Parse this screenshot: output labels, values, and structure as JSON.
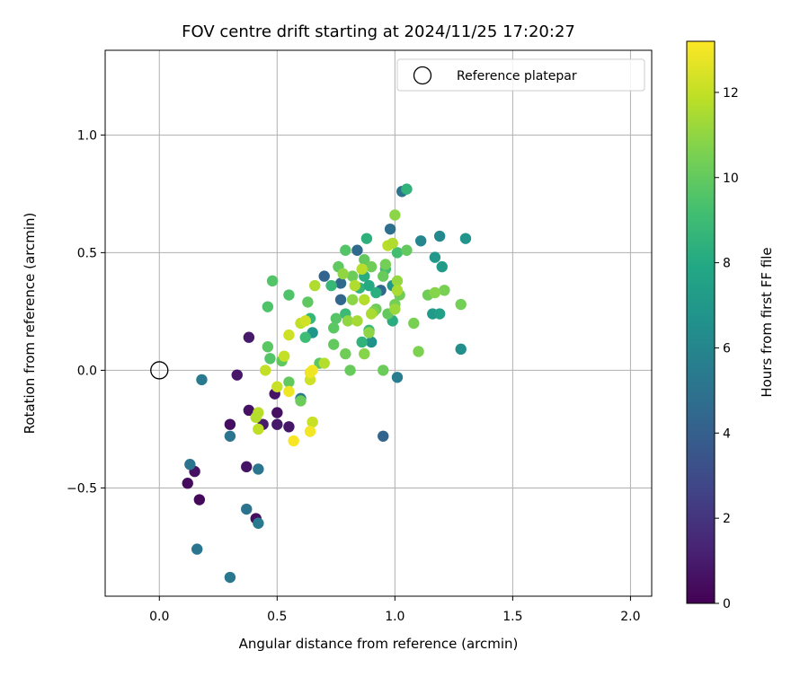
{
  "chart_data": {
    "type": "scatter",
    "title": "FOV centre drift starting at 2024/11/25 17:20:27",
    "xlabel": "Angular distance from reference (arcmin)",
    "ylabel": "Rotation from reference (arcmin)",
    "xlim": [
      -0.23,
      2.09
    ],
    "ylim": [
      -0.96,
      1.36
    ],
    "xticks": [
      0.0,
      0.5,
      1.0,
      1.5,
      2.0
    ],
    "xtick_labels": [
      "0.0",
      "0.5",
      "1.0",
      "1.5",
      "2.0"
    ],
    "yticks": [
      -0.5,
      0.0,
      0.5,
      1.0
    ],
    "ytick_labels": [
      "−0.5",
      "0.0",
      "0.5",
      "1.0"
    ],
    "grid": true,
    "legend": {
      "position": "top-right",
      "label": "Reference platepar"
    },
    "reference_point": [
      0.0,
      0.0
    ],
    "colorbar": {
      "label": "Hours from first FF file",
      "range": [
        0,
        13.2
      ],
      "ticks": [
        0,
        2,
        4,
        6,
        8,
        10,
        12
      ],
      "tick_labels": [
        "0",
        "2",
        "4",
        "6",
        "8",
        "10",
        "12"
      ],
      "colormap": "viridis"
    },
    "points": [
      {
        "x": 0.12,
        "y": -0.48,
        "h": 0.4
      },
      {
        "x": 0.15,
        "y": -0.43,
        "h": 0.6
      },
      {
        "x": 0.17,
        "y": -0.55,
        "h": 0.3
      },
      {
        "x": 0.3,
        "y": -0.23,
        "h": 0.5
      },
      {
        "x": 0.33,
        "y": -0.02,
        "h": 0.8
      },
      {
        "x": 0.38,
        "y": 0.14,
        "h": 0.9
      },
      {
        "x": 0.38,
        "y": -0.17,
        "h": 0.6
      },
      {
        "x": 0.37,
        "y": -0.41,
        "h": 0.7
      },
      {
        "x": 0.41,
        "y": -0.63,
        "h": 0.5
      },
      {
        "x": 0.44,
        "y": -0.23,
        "h": 1.0
      },
      {
        "x": 0.49,
        "y": -0.1,
        "h": 0.7
      },
      {
        "x": 0.5,
        "y": -0.18,
        "h": 0.6
      },
      {
        "x": 0.5,
        "y": -0.23,
        "h": 0.9
      },
      {
        "x": 0.55,
        "y": -0.24,
        "h": 0.8
      },
      {
        "x": 0.13,
        "y": -0.4,
        "h": 5.0
      },
      {
        "x": 0.16,
        "y": -0.76,
        "h": 5.2
      },
      {
        "x": 0.18,
        "y": -0.04,
        "h": 5.4
      },
      {
        "x": 0.3,
        "y": -0.28,
        "h": 5.1
      },
      {
        "x": 0.3,
        "y": -0.88,
        "h": 5.3
      },
      {
        "x": 0.37,
        "y": -0.59,
        "h": 5.0
      },
      {
        "x": 0.42,
        "y": -0.42,
        "h": 5.2
      },
      {
        "x": 0.42,
        "y": -0.65,
        "h": 5.4
      },
      {
        "x": 0.6,
        "y": -0.12,
        "h": 5.3
      },
      {
        "x": 0.7,
        "y": 0.4,
        "h": 4.2
      },
      {
        "x": 0.77,
        "y": 0.37,
        "h": 4.5
      },
      {
        "x": 0.77,
        "y": 0.3,
        "h": 4.4
      },
      {
        "x": 0.84,
        "y": 0.51,
        "h": 4.6
      },
      {
        "x": 0.95,
        "y": -0.28,
        "h": 4.3
      },
      {
        "x": 0.94,
        "y": 0.34,
        "h": 4.5
      },
      {
        "x": 0.98,
        "y": 0.6,
        "h": 4.8
      },
      {
        "x": 1.03,
        "y": 0.76,
        "h": 5.0
      },
      {
        "x": 1.01,
        "y": -0.03,
        "h": 5.6
      },
      {
        "x": 1.11,
        "y": 0.55,
        "h": 6.0
      },
      {
        "x": 1.19,
        "y": 0.57,
        "h": 6.2
      },
      {
        "x": 1.28,
        "y": 0.09,
        "h": 6.5
      },
      {
        "x": 1.3,
        "y": 0.56,
        "h": 6.8
      },
      {
        "x": 1.17,
        "y": 0.48,
        "h": 7.0
      },
      {
        "x": 1.2,
        "y": 0.44,
        "h": 7.2
      },
      {
        "x": 1.16,
        "y": 0.24,
        "h": 7.1
      },
      {
        "x": 1.19,
        "y": 0.24,
        "h": 7.4
      },
      {
        "x": 0.99,
        "y": 0.36,
        "h": 6.9
      },
      {
        "x": 0.9,
        "y": 0.12,
        "h": 6.6
      },
      {
        "x": 0.65,
        "y": 0.16,
        "h": 6.9
      },
      {
        "x": 1.05,
        "y": 0.77,
        "h": 8.5
      },
      {
        "x": 0.88,
        "y": 0.56,
        "h": 8.4
      },
      {
        "x": 0.87,
        "y": 0.4,
        "h": 8.2
      },
      {
        "x": 0.85,
        "y": 0.35,
        "h": 8.6
      },
      {
        "x": 0.89,
        "y": 0.36,
        "h": 8.0
      },
      {
        "x": 0.92,
        "y": 0.33,
        "h": 8.3
      },
      {
        "x": 0.86,
        "y": 0.12,
        "h": 8.5
      },
      {
        "x": 0.99,
        "y": 0.21,
        "h": 8.2
      },
      {
        "x": 0.73,
        "y": 0.36,
        "h": 8.8
      },
      {
        "x": 0.64,
        "y": 0.22,
        "h": 8.7
      },
      {
        "x": 0.62,
        "y": 0.14,
        "h": 9.0
      },
      {
        "x": 0.79,
        "y": 0.24,
        "h": 8.9
      },
      {
        "x": 0.96,
        "y": 0.43,
        "h": 9.1
      },
      {
        "x": 1.01,
        "y": 0.5,
        "h": 9.2
      },
      {
        "x": 0.89,
        "y": 0.17,
        "h": 8.9
      },
      {
        "x": 0.48,
        "y": 0.38,
        "h": 9.6
      },
      {
        "x": 0.46,
        "y": 0.27,
        "h": 9.5
      },
      {
        "x": 0.55,
        "y": 0.32,
        "h": 9.5
      },
      {
        "x": 0.46,
        "y": 0.1,
        "h": 9.8
      },
      {
        "x": 0.47,
        "y": 0.05,
        "h": 9.6
      },
      {
        "x": 0.52,
        "y": 0.04,
        "h": 9.9
      },
      {
        "x": 0.55,
        "y": -0.05,
        "h": 10.0
      },
      {
        "x": 0.6,
        "y": -0.13,
        "h": 10.2
      },
      {
        "x": 0.63,
        "y": 0.29,
        "h": 9.9
      },
      {
        "x": 0.68,
        "y": 0.03,
        "h": 9.8
      },
      {
        "x": 0.76,
        "y": 0.44,
        "h": 9.9
      },
      {
        "x": 0.79,
        "y": 0.51,
        "h": 9.6
      },
      {
        "x": 0.75,
        "y": 0.22,
        "h": 9.7
      },
      {
        "x": 0.74,
        "y": 0.18,
        "h": 9.8
      },
      {
        "x": 0.74,
        "y": 0.11,
        "h": 10.0
      },
      {
        "x": 0.79,
        "y": 0.07,
        "h": 10.3
      },
      {
        "x": 0.81,
        "y": 0.0,
        "h": 10.1
      },
      {
        "x": 0.82,
        "y": 0.4,
        "h": 10.2
      },
      {
        "x": 0.87,
        "y": 0.47,
        "h": 10.0
      },
      {
        "x": 0.9,
        "y": 0.44,
        "h": 10.3
      },
      {
        "x": 0.95,
        "y": 0.4,
        "h": 10.1
      },
      {
        "x": 0.96,
        "y": 0.45,
        "h": 10.4
      },
      {
        "x": 0.95,
        "y": 0.0,
        "h": 10.2
      },
      {
        "x": 0.97,
        "y": 0.24,
        "h": 10.0
      },
      {
        "x": 1.0,
        "y": 0.28,
        "h": 10.4
      },
      {
        "x": 1.02,
        "y": 0.32,
        "h": 10.3
      },
      {
        "x": 1.05,
        "y": 0.51,
        "h": 10.0
      },
      {
        "x": 1.08,
        "y": 0.2,
        "h": 10.5
      },
      {
        "x": 1.1,
        "y": 0.08,
        "h": 10.6
      },
      {
        "x": 1.14,
        "y": 0.32,
        "h": 10.3
      },
      {
        "x": 1.21,
        "y": 0.34,
        "h": 10.5
      },
      {
        "x": 1.28,
        "y": 0.28,
        "h": 10.4
      },
      {
        "x": 0.92,
        "y": 0.26,
        "h": 10.2
      },
      {
        "x": 0.91,
        "y": 0.25,
        "h": 10.6
      },
      {
        "x": 0.87,
        "y": 0.07,
        "h": 10.8
      },
      {
        "x": 1.0,
        "y": 0.66,
        "h": 10.9
      },
      {
        "x": 1.17,
        "y": 0.33,
        "h": 10.8
      },
      {
        "x": 0.78,
        "y": 0.41,
        "h": 11.0
      },
      {
        "x": 0.82,
        "y": 0.3,
        "h": 10.9
      },
      {
        "x": 0.8,
        "y": 0.21,
        "h": 11.0
      },
      {
        "x": 0.89,
        "y": 0.16,
        "h": 10.9
      },
      {
        "x": 1.01,
        "y": 0.38,
        "h": 11.1
      },
      {
        "x": 1.0,
        "y": 0.26,
        "h": 11.2
      },
      {
        "x": 0.84,
        "y": 0.21,
        "h": 11.4
      },
      {
        "x": 0.83,
        "y": 0.36,
        "h": 11.6
      },
      {
        "x": 0.86,
        "y": 0.43,
        "h": 11.8
      },
      {
        "x": 0.87,
        "y": 0.3,
        "h": 11.7
      },
      {
        "x": 0.9,
        "y": 0.24,
        "h": 11.5
      },
      {
        "x": 0.97,
        "y": 0.53,
        "h": 11.8
      },
      {
        "x": 0.99,
        "y": 0.54,
        "h": 11.6
      },
      {
        "x": 1.01,
        "y": 0.34,
        "h": 11.5
      },
      {
        "x": 0.66,
        "y": 0.36,
        "h": 11.6
      },
      {
        "x": 0.7,
        "y": 0.03,
        "h": 11.7
      },
      {
        "x": 0.42,
        "y": -0.18,
        "h": 11.8
      },
      {
        "x": 0.41,
        "y": -0.2,
        "h": 11.7
      },
      {
        "x": 0.42,
        "y": -0.25,
        "h": 11.9
      },
      {
        "x": 0.45,
        "y": 0.0,
        "h": 12.0
      },
      {
        "x": 0.5,
        "y": -0.07,
        "h": 12.1
      },
      {
        "x": 0.53,
        "y": 0.06,
        "h": 12.0
      },
      {
        "x": 0.55,
        "y": 0.15,
        "h": 12.2
      },
      {
        "x": 0.6,
        "y": 0.2,
        "h": 11.9
      },
      {
        "x": 0.62,
        "y": 0.21,
        "h": 12.3
      },
      {
        "x": 0.64,
        "y": -0.04,
        "h": 12.2
      },
      {
        "x": 0.65,
        "y": -0.22,
        "h": 12.1
      },
      {
        "x": 0.64,
        "y": -0.26,
        "h": 13.0
      },
      {
        "x": 0.57,
        "y": -0.3,
        "h": 13.1
      },
      {
        "x": 0.65,
        "y": 0.0,
        "h": 13.0
      },
      {
        "x": 0.64,
        "y": -0.01,
        "h": 12.9
      },
      {
        "x": 0.55,
        "y": -0.09,
        "h": 12.9
      }
    ]
  }
}
